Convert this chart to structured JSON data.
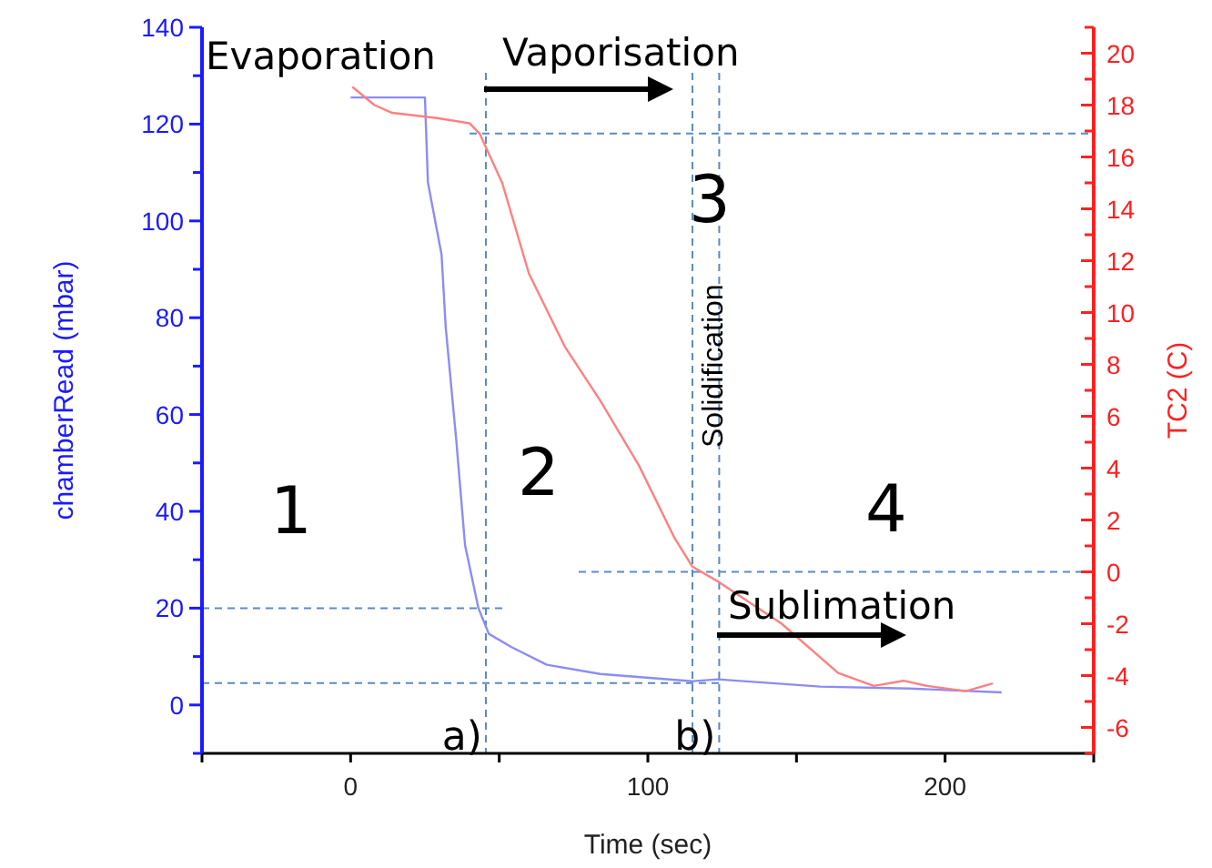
{
  "chart_data": {
    "type": "line",
    "xlabel": "Time (sec)",
    "ylabel": "chamberRead (mbar)",
    "y2label": "TC2 (C)",
    "xlim": [
      -50,
      250
    ],
    "xticks": [
      {
        "value": -50,
        "label": null
      },
      0,
      {
        "value": 50,
        "label": null
      },
      100,
      {
        "value": 150,
        "label": null
      },
      200,
      {
        "value": 250,
        "label": null
      }
    ],
    "ylim": [
      -10,
      140
    ],
    "yticks": [
      {
        "value": -10,
        "label": null
      },
      0,
      {
        "value": 10,
        "label": null
      },
      20,
      {
        "value": 30,
        "label": null
      },
      40,
      {
        "value": 50,
        "label": null
      },
      60,
      {
        "value": 70,
        "label": null
      },
      80,
      {
        "value": 90,
        "label": null
      },
      100,
      {
        "value": 110,
        "label": null
      },
      120,
      {
        "value": 130,
        "label": null
      },
      140
    ],
    "y2lim": [
      -7,
      21
    ],
    "y2ticks": [
      {
        "value": -7,
        "label": null
      },
      -6,
      {
        "value": -5,
        "label": null
      },
      -4,
      {
        "value": -3,
        "label": null
      },
      -2,
      {
        "value": -1,
        "label": null
      },
      0,
      {
        "value": 1,
        "label": null
      },
      2,
      {
        "value": 3,
        "label": null
      },
      4,
      {
        "value": 5,
        "label": null
      },
      6,
      {
        "value": 7,
        "label": null
      },
      8,
      {
        "value": 9,
        "label": null
      },
      10,
      {
        "value": 11,
        "label": null
      },
      12,
      {
        "value": 13,
        "label": null
      },
      14,
      {
        "value": 15,
        "label": null
      },
      16,
      {
        "value": 17,
        "label": null
      },
      18,
      {
        "value": 19,
        "label": null
      },
      20,
      {
        "value": 21,
        "label": null
      }
    ],
    "series": [
      {
        "color": "#8c8cf5",
        "x": [
          0,
          25,
          26,
          30.6,
          32,
          35.5,
          38.5,
          43,
          46.5,
          54,
          66,
          84,
          115,
          123.5,
          158,
          188,
          219
        ],
        "values": [
          125.5,
          125.5,
          108,
          93,
          78,
          55,
          33,
          20,
          14.7,
          12,
          8.3,
          6.4,
          4.9,
          5.3,
          3.8,
          3.4,
          2.6
        ]
      },
      {
        "color": "#ff8080",
        "axis": "y2",
        "x": [
          0.6,
          8,
          14,
          29,
          40,
          43.4,
          51,
          60,
          72,
          84,
          97,
          109,
          115,
          124,
          145,
          164,
          176,
          186,
          194,
          207,
          216
        ],
        "values": [
          18.7,
          18.0,
          17.7,
          17.5,
          17.3,
          16.9,
          15.0,
          11.5,
          8.7,
          6.6,
          4.1,
          1.3,
          0.2,
          -0.4,
          -2.0,
          -3.9,
          -4.4,
          -4.2,
          -4.4,
          -4.6,
          -4.3
        ]
      }
    ],
    "ref_lines": [
      {
        "axis": "x",
        "value": 45.5,
        "label": "a)",
        "color": "#5b8ac6",
        "line_style": "dashed"
      },
      {
        "axis": "x",
        "value": 115,
        "color": "#5b8ac6",
        "line_style": "dashed"
      },
      {
        "axis": "x",
        "value": 124,
        "label": "b)",
        "color": "#5b8ac6",
        "line_style": "dashed"
      },
      {
        "axis": "y2",
        "value": 16.9,
        "color": "#5b8ac6",
        "line_style": "dashed"
      },
      {
        "axis": "y",
        "value": 20,
        "color": "#5b8ac6",
        "line_style": "dashed"
      },
      {
        "axis": "y",
        "value": 4.5,
        "color": "#5b8ac6",
        "line_style": "dashed"
      },
      {
        "axis": "y2",
        "value": 0,
        "color": "#5b8ac6",
        "line_style": "dashed"
      }
    ],
    "annotations": [
      "Evaporation",
      "Vaporisation",
      "1",
      "2",
      "3",
      "4",
      "Solidification",
      "Sublimation"
    ],
    "marker": "none",
    "line_style": "solid",
    "grid": false
  }
}
